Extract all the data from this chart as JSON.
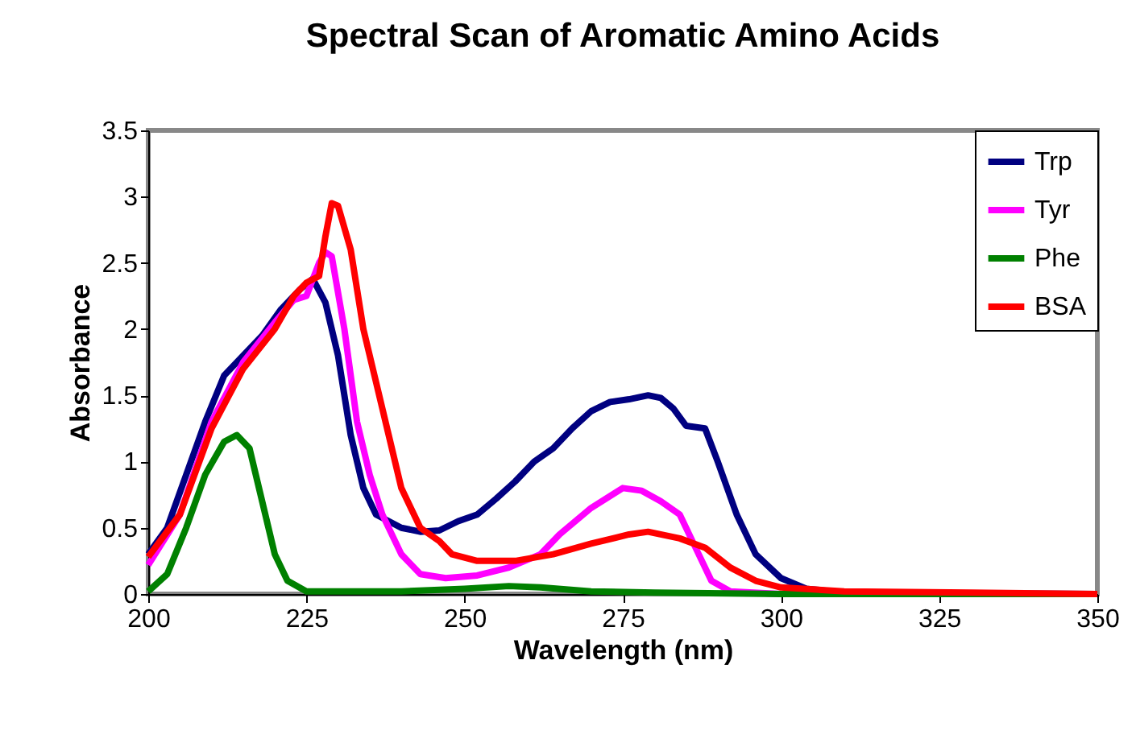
{
  "chart_data": {
    "type": "line",
    "title": "Spectral Scan of Aromatic Amino Acids",
    "xlabel": "Wavelength (nm)",
    "ylabel": "Absorbance",
    "xlim": [
      200,
      350
    ],
    "xticks": [
      200,
      225,
      250,
      275,
      300,
      325,
      350
    ],
    "ylim": [
      0,
      3.5
    ],
    "yticks": [
      0,
      0.5,
      1,
      1.5,
      2,
      2.5,
      3,
      3.5
    ],
    "grid": false,
    "legend": "top right",
    "marker": "none",
    "line_style": "solid",
    "series": [
      {
        "name": "Trp",
        "color": "#000080",
        "x": [
          200,
          203,
          206,
          209,
          212,
          215,
          218,
          221,
          224,
          226,
          228,
          230,
          232,
          234,
          236,
          240,
          243,
          246,
          249,
          252,
          255,
          258,
          261,
          264,
          267,
          270,
          273,
          276,
          279,
          281,
          283,
          285,
          288,
          290,
          293,
          296,
          300,
          304,
          310,
          350
        ],
        "values": [
          0.3,
          0.5,
          0.9,
          1.3,
          1.65,
          1.8,
          1.95,
          2.15,
          2.3,
          2.38,
          2.2,
          1.8,
          1.2,
          0.8,
          0.6,
          0.5,
          0.47,
          0.48,
          0.55,
          0.6,
          0.72,
          0.85,
          1.0,
          1.1,
          1.25,
          1.38,
          1.45,
          1.47,
          1.5,
          1.48,
          1.4,
          1.27,
          1.25,
          1.0,
          0.6,
          0.3,
          0.12,
          0.04,
          0.01,
          0
        ]
      },
      {
        "name": "Tyr",
        "color": "#ff00ff",
        "x": [
          200,
          205,
          210,
          215,
          220,
          223,
          225,
          227,
          228,
          229,
          231,
          233,
          235,
          237,
          240,
          243,
          247,
          252,
          257,
          262,
          265,
          270,
          275,
          278,
          281,
          284,
          287,
          289,
          292,
          300,
          350
        ],
        "values": [
          0.22,
          0.6,
          1.3,
          1.75,
          2.05,
          2.22,
          2.25,
          2.5,
          2.58,
          2.55,
          2.0,
          1.3,
          0.9,
          0.6,
          0.3,
          0.15,
          0.12,
          0.14,
          0.2,
          0.3,
          0.45,
          0.65,
          0.8,
          0.78,
          0.7,
          0.6,
          0.3,
          0.1,
          0.02,
          0,
          0
        ]
      },
      {
        "name": "Phe",
        "color": "#008000",
        "x": [
          200,
          203,
          206,
          209,
          212,
          214,
          216,
          218,
          220,
          222,
          225,
          240,
          250,
          257,
          262,
          270,
          280,
          300,
          350
        ],
        "values": [
          0.02,
          0.15,
          0.5,
          0.9,
          1.15,
          1.2,
          1.1,
          0.7,
          0.3,
          0.1,
          0.02,
          0.02,
          0.04,
          0.06,
          0.05,
          0.02,
          0.01,
          0,
          0
        ]
      },
      {
        "name": "BSA",
        "color": "#ff0000",
        "x": [
          200,
          205,
          210,
          215,
          220,
          223,
          225,
          227,
          228,
          229,
          230,
          232,
          234,
          236,
          238,
          240,
          243,
          246,
          248,
          252,
          258,
          264,
          270,
          276,
          279,
          284,
          288,
          292,
          296,
          300,
          310,
          330,
          350
        ],
        "values": [
          0.28,
          0.6,
          1.25,
          1.7,
          2.0,
          2.25,
          2.35,
          2.4,
          2.7,
          2.95,
          2.93,
          2.6,
          2.0,
          1.6,
          1.2,
          0.8,
          0.5,
          0.4,
          0.3,
          0.25,
          0.25,
          0.3,
          0.38,
          0.45,
          0.47,
          0.42,
          0.35,
          0.2,
          0.1,
          0.05,
          0.02,
          0.01,
          0
        ]
      }
    ]
  }
}
